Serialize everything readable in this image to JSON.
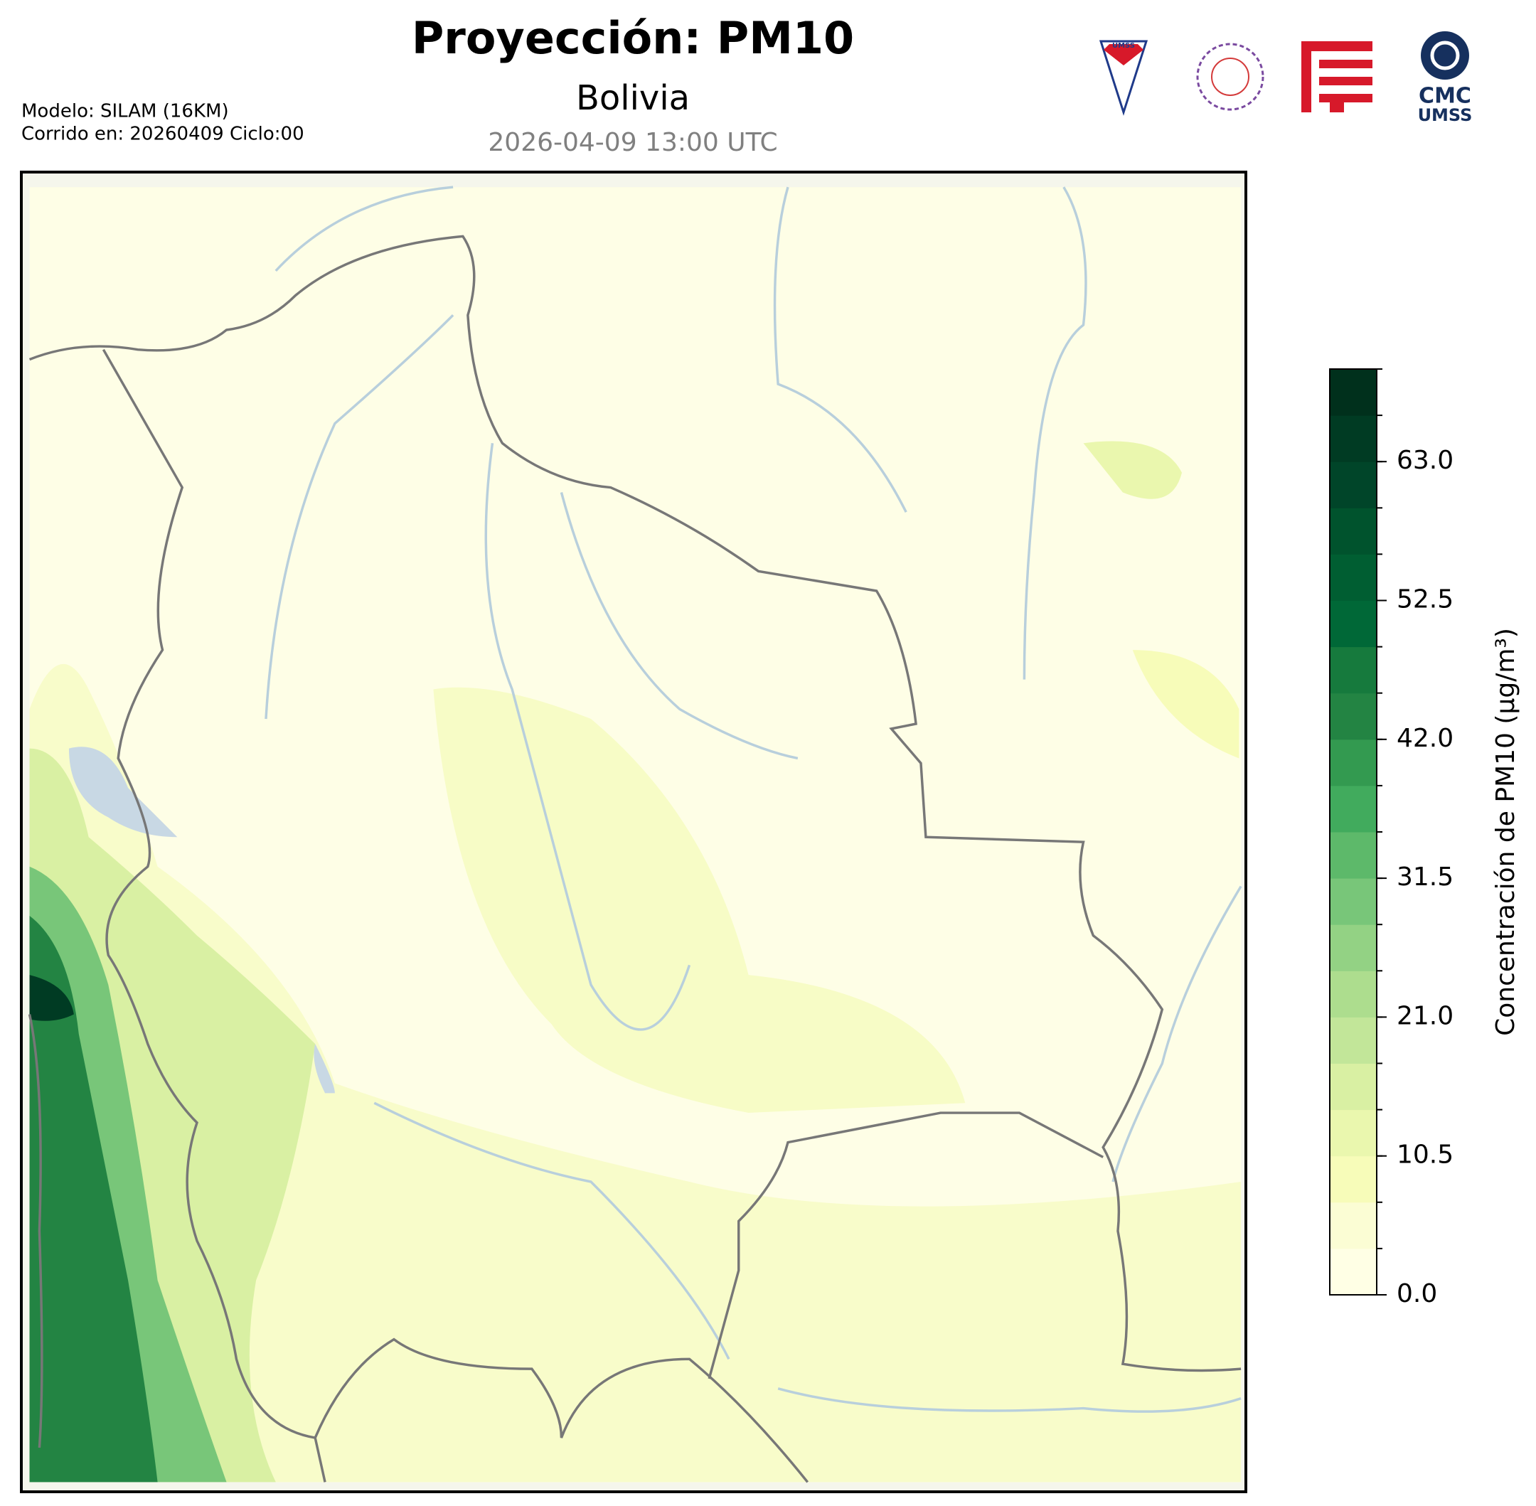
{
  "header": {
    "title": "Proyección: PM10",
    "subtitle": "Bolivia",
    "valid_time": "2026-04-09 13:00 UTC",
    "model": "Modelo: SILAM (16KM)",
    "run": "Corrido en: 20260409 Ciclo:00"
  },
  "logos": {
    "shield": "UMSS",
    "cmc": "CMC",
    "cmc_sub": "UMSS"
  },
  "colorbar": {
    "label": "Concentración de PM10 (µg/m³)",
    "lim": [
      0,
      70
    ],
    "ticks": [
      {
        "value": 0,
        "label": "0.0"
      },
      {
        "value": 10.5,
        "label": "10.5"
      },
      {
        "value": 21,
        "label": "21.0"
      },
      {
        "value": 31.5,
        "label": "31.5"
      },
      {
        "value": 42,
        "label": "42.0"
      },
      {
        "value": 52.5,
        "label": "52.5"
      },
      {
        "value": 63,
        "label": "63.0"
      }
    ],
    "levels": [
      0,
      3.5,
      7,
      10.5,
      14,
      17.5,
      21,
      24.5,
      28,
      31.5,
      35,
      38.5,
      42,
      45.5,
      49,
      52.5,
      56,
      59.5,
      63,
      66.5,
      70
    ],
    "colors": [
      "#ffffe5",
      "#fbfdd4",
      "#f7fcb9",
      "#eaf7ae",
      "#d9f0a3",
      "#c2e699",
      "#addd8e",
      "#93d284",
      "#78c679",
      "#5db96a",
      "#41ab5d",
      "#339a50",
      "#238443",
      "#167a3d",
      "#006837",
      "#005e32",
      "#00532d",
      "#004529",
      "#003b23",
      "#00301c"
    ]
  }
}
